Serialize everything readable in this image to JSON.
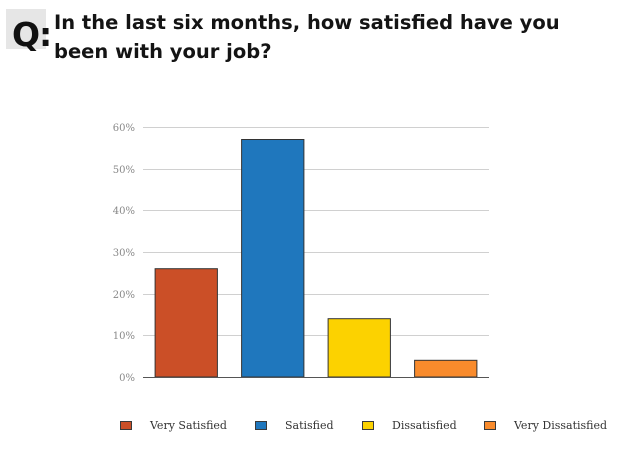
{
  "header": {
    "q_label": "Q:",
    "question": "In the last six months, how satisfied have you been with your job?"
  },
  "chart_data": {
    "type": "bar",
    "title": "",
    "xlabel": "",
    "ylabel": "",
    "categories": [
      "Very Satisfied",
      "Satisfied",
      "Dissatisfied",
      "Very Dissatisfied"
    ],
    "values": [
      26,
      57,
      14,
      4
    ],
    "colors": [
      "#cb4f27",
      "#1f77bd",
      "#fcd200",
      "#f98b2c"
    ],
    "bar_border_color": "#333333",
    "ylim": [
      0,
      60
    ],
    "yticks": [
      0,
      10,
      20,
      30,
      40,
      50,
      60
    ],
    "ytick_labels": [
      "0%",
      "10%",
      "20%",
      "30%",
      "40%",
      "50%",
      "60%"
    ],
    "grid": true,
    "grid_color": "#d0d0d0",
    "legend_position": "bottom",
    "legend": [
      "Very Satisfied",
      "Satisfied",
      "Dissatisfied",
      "Very Dissatisfied"
    ]
  }
}
